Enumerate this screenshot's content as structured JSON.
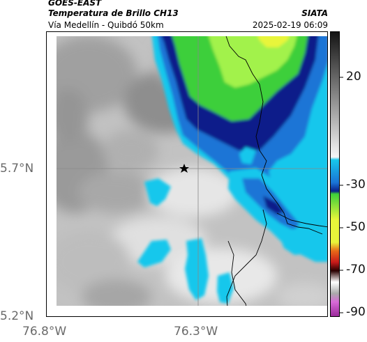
{
  "header": {
    "agency": "GOES-EAST",
    "product": "Temperatura de Brillo CH13",
    "brand": "SIATA",
    "region": "Vía Medellín - Quibdó 50km",
    "timestamp": "2025-02-19 06:09"
  },
  "map": {
    "latitude_labels": [
      "5.7°N",
      "5.2°N"
    ],
    "longitude_labels": [
      "76.8°W",
      "76.3°W"
    ],
    "marker_icon": "star-icon"
  },
  "colorbar": {
    "tick_labels": [
      "20",
      "-30",
      "-50",
      "-70",
      "-90"
    ]
  },
  "colors": {
    "cloud_gray_light": "#f0f0f0",
    "cloud_gray_mid": "#b8b8b8",
    "cloud_gray_dark": "#8c8c8c",
    "cyan": "#17c7ec",
    "medium_blue": "#1a74d6",
    "dark_navy": "#0a1f8a",
    "green": "#38d23a",
    "bright_green": "#9cf24e",
    "yellow": "#e8f53a"
  }
}
